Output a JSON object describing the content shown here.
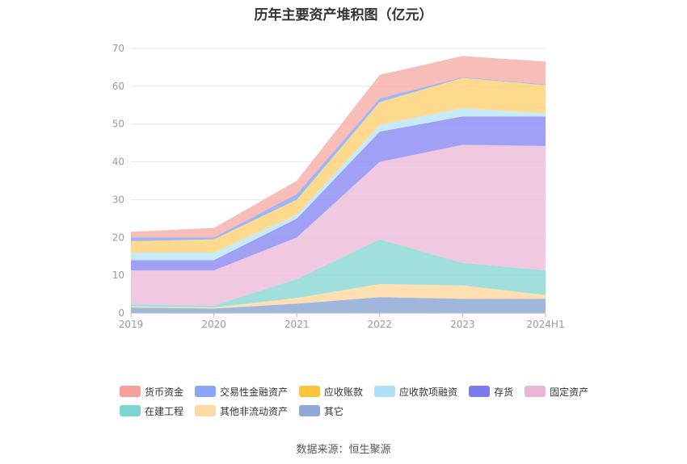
{
  "title": "历年主要资产堆积图（亿元）",
  "source": "数据来源：恒生聚源",
  "chart_data": {
    "type": "area",
    "stacked": true,
    "categories": [
      "2019",
      "2020",
      "2021",
      "2022",
      "2023",
      "2024H1"
    ],
    "ylim": [
      0,
      70
    ],
    "yticks": [
      0,
      10,
      20,
      30,
      40,
      50,
      60,
      70
    ],
    "grid": true,
    "legend_position": "bottom",
    "series": [
      {
        "name": "其它",
        "color": "#8fa9d6",
        "values": [
          1.5,
          1.2,
          2.5,
          4.2,
          3.8,
          3.8
        ]
      },
      {
        "name": "其他非流动资产",
        "color": "#fdd9a3",
        "values": [
          0.3,
          0.3,
          1.5,
          3.5,
          3.5,
          1.0
        ]
      },
      {
        "name": "在建工程",
        "color": "#8fd9d6",
        "values": [
          0.5,
          0.5,
          5.0,
          11.8,
          6.0,
          6.5
        ]
      },
      {
        "name": "固定资产",
        "color": "#edc0dc",
        "values": [
          9.0,
          9.3,
          11.0,
          20.5,
          31.2,
          32.9
        ]
      },
      {
        "name": "存货",
        "color": "#8f8ff2",
        "values": [
          2.7,
          2.7,
          5.0,
          8.0,
          7.5,
          7.8
        ]
      },
      {
        "name": "应收款项融资",
        "color": "#bde6f7",
        "values": [
          2.0,
          2.0,
          1.0,
          1.8,
          2.2,
          0.8
        ]
      },
      {
        "name": "应收账款",
        "color": "#fdd47a",
        "values": [
          3.0,
          3.5,
          4.0,
          6.0,
          8.0,
          7.5
        ]
      },
      {
        "name": "交易性金融资产",
        "color": "#8fa9f2",
        "values": [
          1.0,
          0.5,
          1.5,
          1.0,
          0.2,
          0.2
        ]
      },
      {
        "name": "货币资金",
        "color": "#f7b0ad",
        "values": [
          1.5,
          2.5,
          3.5,
          6.2,
          5.6,
          6.0
        ]
      }
    ],
    "legend_order": [
      "货币资金",
      "交易性金融资产",
      "应收账款",
      "应收款项融资",
      "存货",
      "固定资产",
      "在建工程",
      "其他非流动资产",
      "其它"
    ],
    "legend_colors": {
      "货币资金": "#f5a09a",
      "交易性金融资产": "#8aa5f5",
      "应收账款": "#fbc53a",
      "应收款项融资": "#aee0f8",
      "存货": "#7b7bee",
      "固定资产": "#e9b6d6",
      "在建工程": "#7fd5d2",
      "其他非流动资产": "#fdd9a3",
      "其它": "#8fa9d6"
    }
  }
}
